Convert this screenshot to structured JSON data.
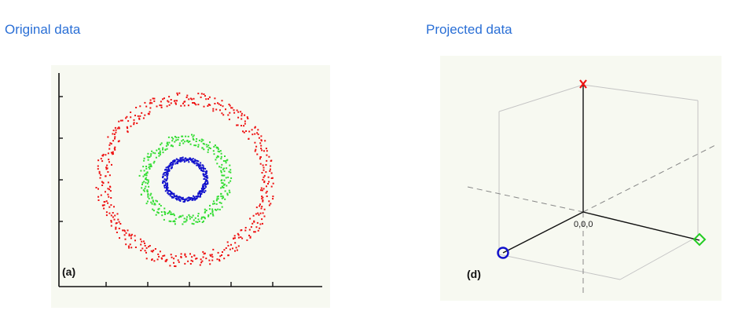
{
  "headings": {
    "left": "Original data",
    "right": "Projected data"
  },
  "left_panel": {
    "tag": "(a)",
    "rings": [
      {
        "color": "#ee1111",
        "radius": 1.0,
        "count": 480
      },
      {
        "color": "#33dd33",
        "radius": 0.5,
        "count": 320
      },
      {
        "color": "#1111cc",
        "radius": 0.25,
        "count": 300
      }
    ]
  },
  "right_panel": {
    "tag": "(d)",
    "origin_label": "0,0,0",
    "markers": [
      {
        "name": "red",
        "shape": "cross",
        "color": "#ee1111"
      },
      {
        "name": "green",
        "shape": "diamond",
        "color": "#22cc22"
      },
      {
        "name": "blue",
        "shape": "circle",
        "color": "#1111cc"
      }
    ]
  }
}
